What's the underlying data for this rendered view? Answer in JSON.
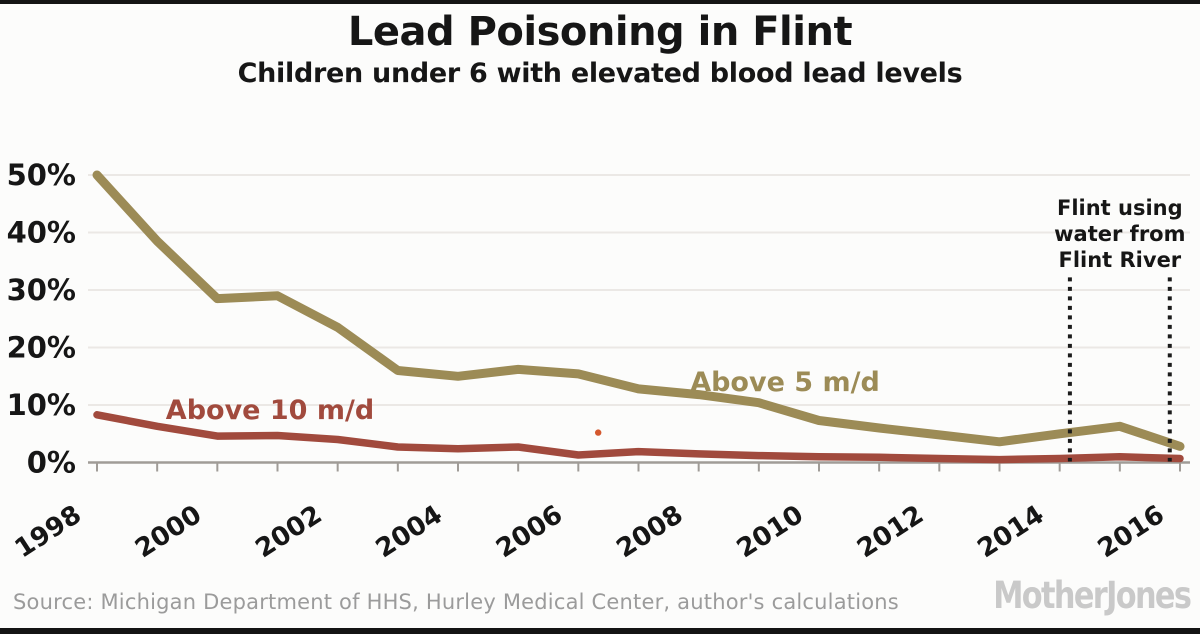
{
  "header": {
    "title": "Lead Poisoning in Flint",
    "subtitle": "Children under 6 with elevated blood lead levels"
  },
  "chart_data": {
    "type": "line",
    "title": "Lead Poisoning in Flint",
    "subtitle": "Children under 6 with elevated blood lead levels",
    "x": [
      1998,
      1999,
      2000,
      2001,
      2002,
      2003,
      2004,
      2005,
      2006,
      2007,
      2008,
      2009,
      2010,
      2011,
      2012,
      2013,
      2014,
      2015,
      2016
    ],
    "series": [
      {
        "name": "Above 5 m/d",
        "color": "#9c8b56",
        "stroke_width": 9,
        "values": [
          50,
          38.5,
          28.5,
          29,
          23.5,
          16,
          15,
          16.2,
          15.4,
          12.8,
          11.8,
          10.4,
          7.3,
          6,
          4.8,
          3.6,
          5,
          6.3,
          2.8
        ]
      },
      {
        "name": "Above 10 m/d",
        "color": "#a14a3d",
        "stroke_width": 7.5,
        "values": [
          8.3,
          6.3,
          4.6,
          4.7,
          4,
          2.7,
          2.4,
          2.7,
          1.3,
          1.9,
          1.5,
          1.2,
          1,
          0.9,
          0.7,
          0.5,
          0.7,
          1,
          0.7
        ]
      }
    ],
    "ylim": [
      0,
      52
    ],
    "yticks": [
      0,
      10,
      20,
      30,
      40,
      50
    ],
    "ytick_labels": [
      "0%",
      "10%",
      "20%",
      "30%",
      "40%",
      "50%"
    ],
    "xtick_years": [
      1998,
      1999,
      2000,
      2001,
      2002,
      2003,
      2004,
      2005,
      2006,
      2007,
      2008,
      2009,
      2010,
      2011,
      2012,
      2013,
      2014,
      2015,
      2016
    ],
    "xtick_labeled": [
      1998,
      2000,
      2002,
      2004,
      2006,
      2008,
      2010,
      2012,
      2014,
      2016
    ],
    "grid": "faint horizontal gridlines at every 10%",
    "legend_position": "inline labels beside each line",
    "event_band": {
      "label_lines": [
        "Flint using",
        "water from",
        "Flint River"
      ],
      "start_year": 2014.17,
      "end_year": 2015.83,
      "top_pct": 32.2,
      "line_color": "#1b1b1b"
    },
    "stray_point": {
      "x_year": 2006.33,
      "y_pct": 5.2,
      "color": "#d4582e"
    }
  },
  "footer": {
    "source": "Source: Michigan Department of HHS, Hurley Medical Center, author's calculations",
    "logo": "MotherJones"
  },
  "colors": {
    "background": "#fcfcfb",
    "frame_bars": "#141414",
    "text": "#161616",
    "axis": "#a09c97",
    "gridline": "#ebe8e5",
    "source_text": "#9b9b9b",
    "logo_gray": "#c9c9c9"
  }
}
